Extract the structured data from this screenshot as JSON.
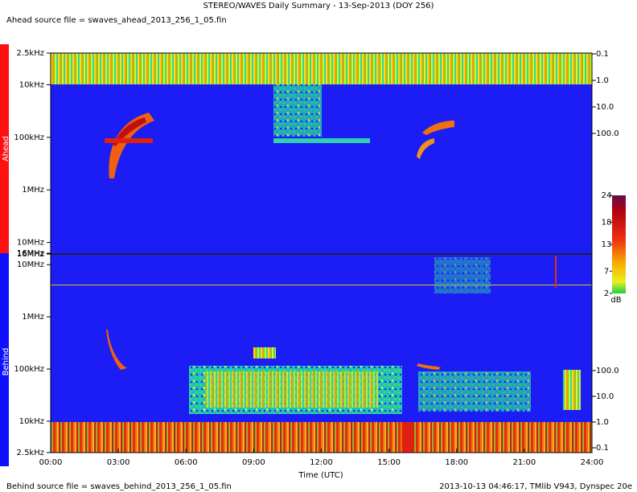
{
  "chart_data": {
    "type": "spectrogram",
    "title": "STEREO/WAVES Daily Summary - 13-Sep-2013 (DOY 256)",
    "source_top": "Ahead source file = swaves_ahead_2013_256_1_05.fin",
    "source_bottom": "Behind source file = swaves_behind_2013_256_1_05.fin",
    "footer_right": "2013-10-13 04:46:17, TMlib V943, Dynspec 20e",
    "x_label": "Time (UTC)",
    "xlim": [
      0,
      24
    ],
    "xticks": [
      {
        "value": 0,
        "label": "00:00"
      },
      {
        "value": 3,
        "label": "03:00"
      },
      {
        "value": 6,
        "label": "06:00"
      },
      {
        "value": 9,
        "label": "09:00"
      },
      {
        "value": 12,
        "label": "12:00"
      },
      {
        "value": 15,
        "label": "15:00"
      },
      {
        "value": 18,
        "label": "18:00"
      },
      {
        "value": 21,
        "label": "21:00"
      },
      {
        "value": 24,
        "label": "24:00"
      }
    ],
    "panels": [
      {
        "name": "Ahead",
        "log": true,
        "ylim": [
          16000,
          2.5
        ],
        "yticks": [
          {
            "value": 2.5,
            "label": "2.5kHz"
          },
          {
            "value": 10,
            "label": "10kHz"
          },
          {
            "value": 100,
            "label": "100kHz"
          },
          {
            "value": 1000,
            "label": "1MHz"
          },
          {
            "value": 10000,
            "label": "10MHz"
          },
          {
            "value": 16000,
            "label": "16MHz"
          }
        ],
        "y2lim": [
          3300000,
          0.093
        ],
        "y2ticks": [
          0.1,
          {
            "value": 1,
            "label": "1.0"
          },
          {
            "value": 10,
            "label": "10.0"
          },
          {
            "value": 100,
            "label": "100.0"
          }
        ]
      },
      {
        "name": "Behind",
        "log": true,
        "ylim": [
          2.5,
          16000
        ],
        "yticks": [
          {
            "value": 16000,
            "label": "16MHz"
          },
          {
            "value": 10000,
            "label": "10MHz"
          },
          {
            "value": 1000,
            "label": "1MHz"
          },
          {
            "value": 100,
            "label": "100kHz"
          },
          {
            "value": 10,
            "label": "10kHz"
          },
          {
            "value": 2.5,
            "label": "2.5kHz"
          }
        ],
        "y2lim": [
          0.065,
          3400000
        ],
        "y2ticks": [
          {
            "value": 100,
            "label": "100.0"
          },
          {
            "value": 10,
            "label": "10.0"
          },
          {
            "value": 1,
            "label": "1.0"
          },
          0.1
        ]
      }
    ],
    "colorbar": {
      "clim": [
        2,
        24
      ],
      "ticks": [
        24,
        18,
        13,
        7,
        2
      ],
      "label": "dB"
    }
  }
}
